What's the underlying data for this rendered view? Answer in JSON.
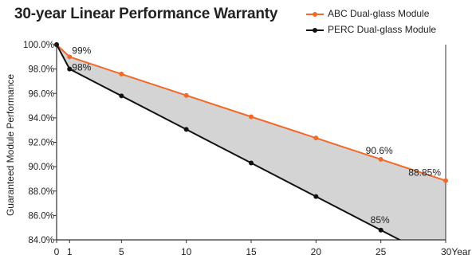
{
  "chart_data": {
    "type": "line",
    "title": "30-year Linear Performance Warranty",
    "ylabel": "Guaranteed Module Performance",
    "xlabel": "",
    "xlim": [
      0,
      30
    ],
    "ylim": [
      84,
      100
    ],
    "x_ticks": [
      "0",
      "1",
      "5",
      "10",
      "15",
      "20",
      "25",
      "30Year"
    ],
    "x_tick_values": [
      0,
      1,
      5,
      10,
      15,
      20,
      25,
      30
    ],
    "y_ticks": [
      "84.0%",
      "86.0%",
      "88.0%",
      "90.0%",
      "92.0%",
      "94.0%",
      "96.0%",
      "98.0%",
      "100.0%"
    ],
    "y_tick_values": [
      84,
      86,
      88,
      90,
      92,
      94,
      96,
      98,
      100
    ],
    "grid": false,
    "legend_position": "top-right",
    "shaded_between_series": true,
    "series": [
      {
        "name": "ABC Dual-glass Module",
        "color": "#f06a2a",
        "x": [
          0,
          1,
          5,
          10,
          15,
          20,
          25,
          30
        ],
        "y": [
          100,
          99,
          97.59,
          95.84,
          94.09,
          92.35,
          90.6,
          88.85
        ]
      },
      {
        "name": "PERC Dual-glass Module",
        "color": "#111111",
        "x": [
          0,
          1,
          5,
          10,
          15,
          20,
          25,
          26.6
        ],
        "y": [
          100,
          98,
          95.8,
          93.05,
          90.3,
          87.55,
          84.8,
          83.92
        ]
      }
    ],
    "annotations": [
      {
        "text": "99%",
        "x": 1,
        "y": 99,
        "series": 0
      },
      {
        "text": "98%",
        "x": 1,
        "y": 98,
        "series": 1
      },
      {
        "text": "90.6%",
        "x": 25,
        "y": 90.6,
        "series": 0
      },
      {
        "text": "88.85%",
        "x": 30,
        "y": 88.85,
        "series": 0
      },
      {
        "text": "85%",
        "x": 25,
        "y": 84.8,
        "series": 1
      }
    ],
    "colors": {
      "fill": "#d4d4d4",
      "axis": "#333333",
      "text": "#222222"
    }
  }
}
